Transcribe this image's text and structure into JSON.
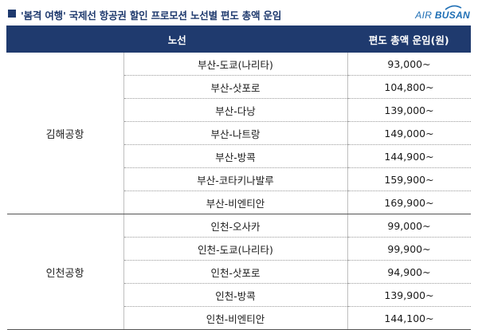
{
  "header": {
    "title": "'봄격 여행' 국제선 항공권 할인 프로모션 노선별 편도 총액 운임",
    "logo_prefix": "AIR",
    "logo_main": "BUSAN"
  },
  "table": {
    "col_route": "노선",
    "col_fare": "편도 총액 운임(원)",
    "groups": [
      {
        "airport": "김해공항",
        "rows": [
          {
            "route": "부산-도쿄(나리타)",
            "fare": "93,000~"
          },
          {
            "route": "부산-삿포로",
            "fare": "104,800~"
          },
          {
            "route": "부산-다낭",
            "fare": "139,000~"
          },
          {
            "route": "부산-나트랑",
            "fare": "149,000~"
          },
          {
            "route": "부산-방콕",
            "fare": "144,900~"
          },
          {
            "route": "부산-코타키나발루",
            "fare": "159,900~"
          },
          {
            "route": "부산-비엔티안",
            "fare": "169,900~"
          }
        ]
      },
      {
        "airport": "인천공항",
        "rows": [
          {
            "route": "인천-오사카",
            "fare": "99,000~"
          },
          {
            "route": "인천-도쿄(나리타)",
            "fare": "99,900~"
          },
          {
            "route": "인천-삿포로",
            "fare": "94,900~"
          },
          {
            "route": "인천-방콕",
            "fare": "139,900~"
          },
          {
            "route": "인천-비엔티안",
            "fare": "144,100~"
          }
        ]
      }
    ]
  },
  "colors": {
    "navy": "#1f3a6e",
    "logo_blue": "#1f6fb5"
  },
  "icons": {
    "bullet": "square-bullet-icon",
    "logo": "air-busan-logo-icon"
  }
}
